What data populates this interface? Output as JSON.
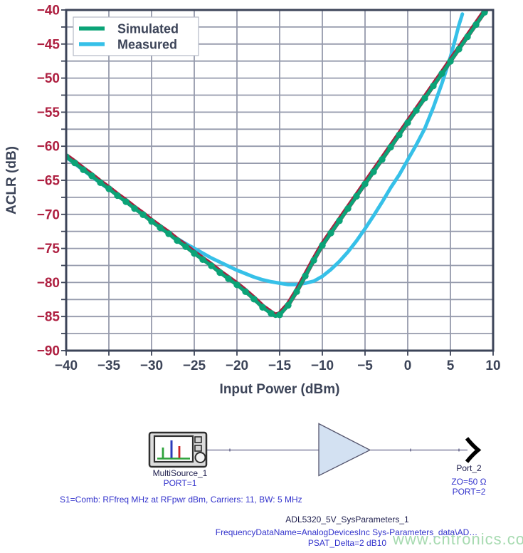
{
  "chart_data": {
    "type": "line",
    "title": "",
    "xlabel": "Input Power (dBm)",
    "ylabel": "ACLR (dB)",
    "xlim": [
      -40,
      10
    ],
    "ylim": [
      -90,
      -40
    ],
    "x_tick_step": 5,
    "y_tick_step": 5,
    "y_grid_step": 2.5,
    "grid": true,
    "legend_position": "top-left",
    "x_tick_labels": [
      "−40",
      "−35",
      "−30",
      "−25",
      "−20",
      "−15",
      "−10",
      "−5",
      "0",
      "5",
      "10"
    ],
    "y_tick_labels": [
      "−40",
      "−45",
      "−50",
      "−55",
      "−60",
      "−65",
      "−70",
      "−75",
      "−80",
      "−85",
      "−90"
    ],
    "colors": {
      "simulated": "#0ba377",
      "simulated_outline": "#a6203f",
      "measured": "#36c0e8",
      "grid": "#959aac",
      "axis": "#3c4458",
      "y_tick_label": "#ae1f40",
      "x_tick_label": "#3c4458"
    },
    "series": [
      {
        "name": "Simulated",
        "color": "#0ba377",
        "outline_color": "#a6203f",
        "marker": "circle",
        "points": [
          [
            -40,
            -61.4
          ],
          [
            -39,
            -62.3
          ],
          [
            -38,
            -63.3
          ],
          [
            -37,
            -64.2
          ],
          [
            -36,
            -65.2
          ],
          [
            -35,
            -66.1
          ],
          [
            -34,
            -67.1
          ],
          [
            -33,
            -68.0
          ],
          [
            -32,
            -69.0
          ],
          [
            -31,
            -69.9
          ],
          [
            -30,
            -70.9
          ],
          [
            -29,
            -71.8
          ],
          [
            -28,
            -72.7
          ],
          [
            -27,
            -73.7
          ],
          [
            -26,
            -74.6
          ],
          [
            -25,
            -75.6
          ],
          [
            -24,
            -76.5
          ],
          [
            -23,
            -77.4
          ],
          [
            -22,
            -78.4
          ],
          [
            -21,
            -79.3
          ],
          [
            -20,
            -80.2
          ],
          [
            -19,
            -81.2
          ],
          [
            -18,
            -82.3
          ],
          [
            -17,
            -83.5
          ],
          [
            -16,
            -84.4
          ],
          [
            -15.5,
            -84.8
          ],
          [
            -15,
            -84.6
          ],
          [
            -14,
            -83.2
          ],
          [
            -13,
            -81.2
          ],
          [
            -12,
            -78.9
          ],
          [
            -11,
            -76.6
          ],
          [
            -10,
            -74.4
          ],
          [
            -9,
            -72.6
          ],
          [
            -8,
            -70.8
          ],
          [
            -7,
            -69.0
          ],
          [
            -6,
            -67.2
          ],
          [
            -5,
            -65.4
          ],
          [
            -4,
            -63.6
          ],
          [
            -3,
            -61.8
          ],
          [
            -2,
            -60.0
          ],
          [
            -1,
            -58.2
          ],
          [
            0,
            -56.4
          ],
          [
            1,
            -54.6
          ],
          [
            2,
            -52.8
          ],
          [
            3,
            -51.0
          ],
          [
            4,
            -49.2
          ],
          [
            5,
            -47.4
          ],
          [
            6,
            -45.6
          ],
          [
            7,
            -43.8
          ],
          [
            8,
            -42.0
          ],
          [
            9,
            -40.2
          ],
          [
            9.4,
            -39.7
          ]
        ]
      },
      {
        "name": "Measured",
        "color": "#36c0e8",
        "marker": "none",
        "points": [
          [
            -40,
            -61.6
          ],
          [
            -38,
            -63.5
          ],
          [
            -36,
            -65.4
          ],
          [
            -34,
            -67.2
          ],
          [
            -32,
            -69.1
          ],
          [
            -30,
            -71.0
          ],
          [
            -28,
            -72.8
          ],
          [
            -26,
            -74.3
          ],
          [
            -25,
            -75.0
          ],
          [
            -24,
            -75.7
          ],
          [
            -23,
            -76.4
          ],
          [
            -22,
            -77.0
          ],
          [
            -21,
            -77.6
          ],
          [
            -20,
            -78.2
          ],
          [
            -19,
            -78.7
          ],
          [
            -18,
            -79.2
          ],
          [
            -17,
            -79.6
          ],
          [
            -16,
            -79.9
          ],
          [
            -15,
            -80.1
          ],
          [
            -14,
            -80.3
          ],
          [
            -13,
            -80.3
          ],
          [
            -12,
            -80.1
          ],
          [
            -11,
            -79.8
          ],
          [
            -10,
            -79.1
          ],
          [
            -9,
            -78.1
          ],
          [
            -8,
            -76.9
          ],
          [
            -7,
            -75.5
          ],
          [
            -6,
            -73.9
          ],
          [
            -5,
            -72.1
          ],
          [
            -4,
            -70.2
          ],
          [
            -3,
            -68.2
          ],
          [
            -2,
            -66.1
          ],
          [
            -1,
            -64.2
          ],
          [
            0,
            -62.0
          ],
          [
            1,
            -59.8
          ],
          [
            2,
            -57.4
          ],
          [
            3,
            -54.3
          ],
          [
            4,
            -50.8
          ],
          [
            5,
            -46.9
          ],
          [
            5.5,
            -44.6
          ],
          [
            6,
            -42.2
          ],
          [
            6.4,
            -40.6
          ]
        ]
      }
    ]
  },
  "schematic": {
    "source_label": "MultiSource_1",
    "source_port": "PORT=1",
    "source_params": "S1=Comb: RFfreq MHz at RFpwr dBm, Carriers: 11, BW: 5 MHz",
    "port2_label": "Port_2",
    "port2_z": "ZO=50 Ω",
    "port2_port": "PORT=2",
    "amp_name": "ADL5320_5V_SysParameters_1",
    "amp_param1": "FrequencyDataName=AnalogDevicesInc Sys-Parameters_data\\AD…",
    "amp_param2": "PSAT_Delta=2 dB10"
  },
  "watermark": "www.cntronics.com"
}
